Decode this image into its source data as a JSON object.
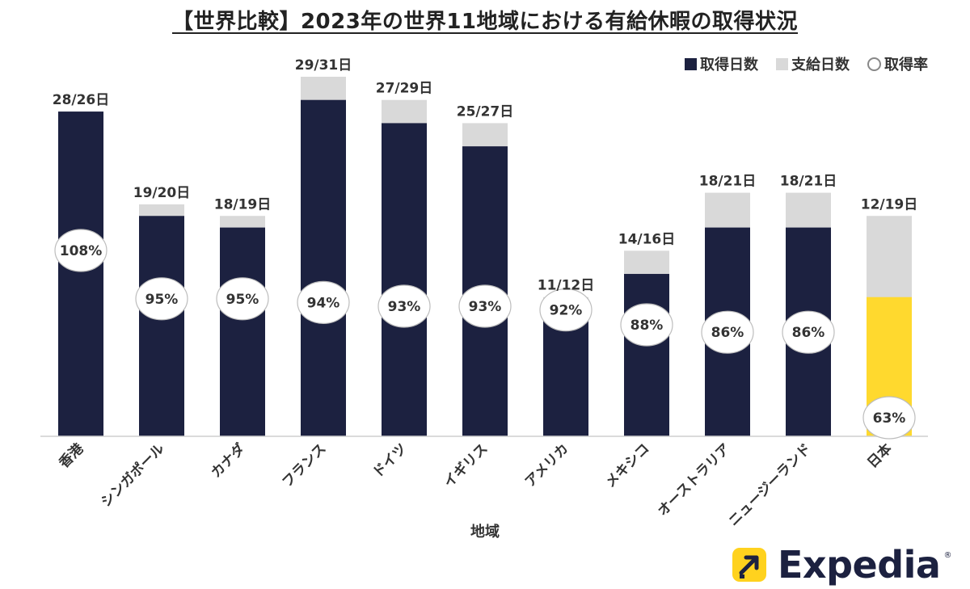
{
  "title": "【世界比較】2023年の世界11地域における有給休暇の取得状況",
  "legend": {
    "taken": "取得日数",
    "given": "支給日数",
    "rate": "取得率"
  },
  "colors": {
    "taken": "#1c2140",
    "given": "#d9d9d9",
    "japan_taken": "#FFD92E",
    "text": "#333333",
    "bubble_border": "#bdbdbd"
  },
  "logo": {
    "text": "Expedia",
    "mark": "®",
    "icon": "arrow-icon"
  },
  "chart_data": {
    "type": "bar",
    "xlabel": "地域",
    "categories": [
      "香港",
      "シンガポール",
      "カナダ",
      "フランス",
      "ドイツ",
      "イギリス",
      "アメリカ",
      "メキシコ",
      "オーストラリア",
      "ニュージーランド",
      "日本"
    ],
    "series": [
      {
        "name": "取得日数",
        "values": [
          28,
          19,
          18,
          29,
          27,
          25,
          11,
          14,
          18,
          18,
          12
        ]
      },
      {
        "name": "支給日数",
        "values": [
          26,
          20,
          19,
          31,
          29,
          27,
          12,
          16,
          21,
          21,
          19
        ]
      },
      {
        "name": "取得率",
        "values": [
          108,
          95,
          95,
          94,
          93,
          93,
          92,
          88,
          86,
          86,
          63
        ]
      }
    ],
    "top_labels": [
      "28/26日",
      "19/20日",
      "18/19日",
      "29/31日",
      "27/29日",
      "25/27日",
      "11/12日",
      "14/16日",
      "18/21日",
      "18/21日",
      "12/19日"
    ],
    "rate_labels": [
      "108%",
      "95%",
      "95%",
      "94%",
      "93%",
      "93%",
      "92%",
      "88%",
      "86%",
      "86%",
      "63%"
    ],
    "highlight": "日本",
    "ylim": [
      0,
      31
    ],
    "grid": false,
    "legend_position": "top-right"
  }
}
